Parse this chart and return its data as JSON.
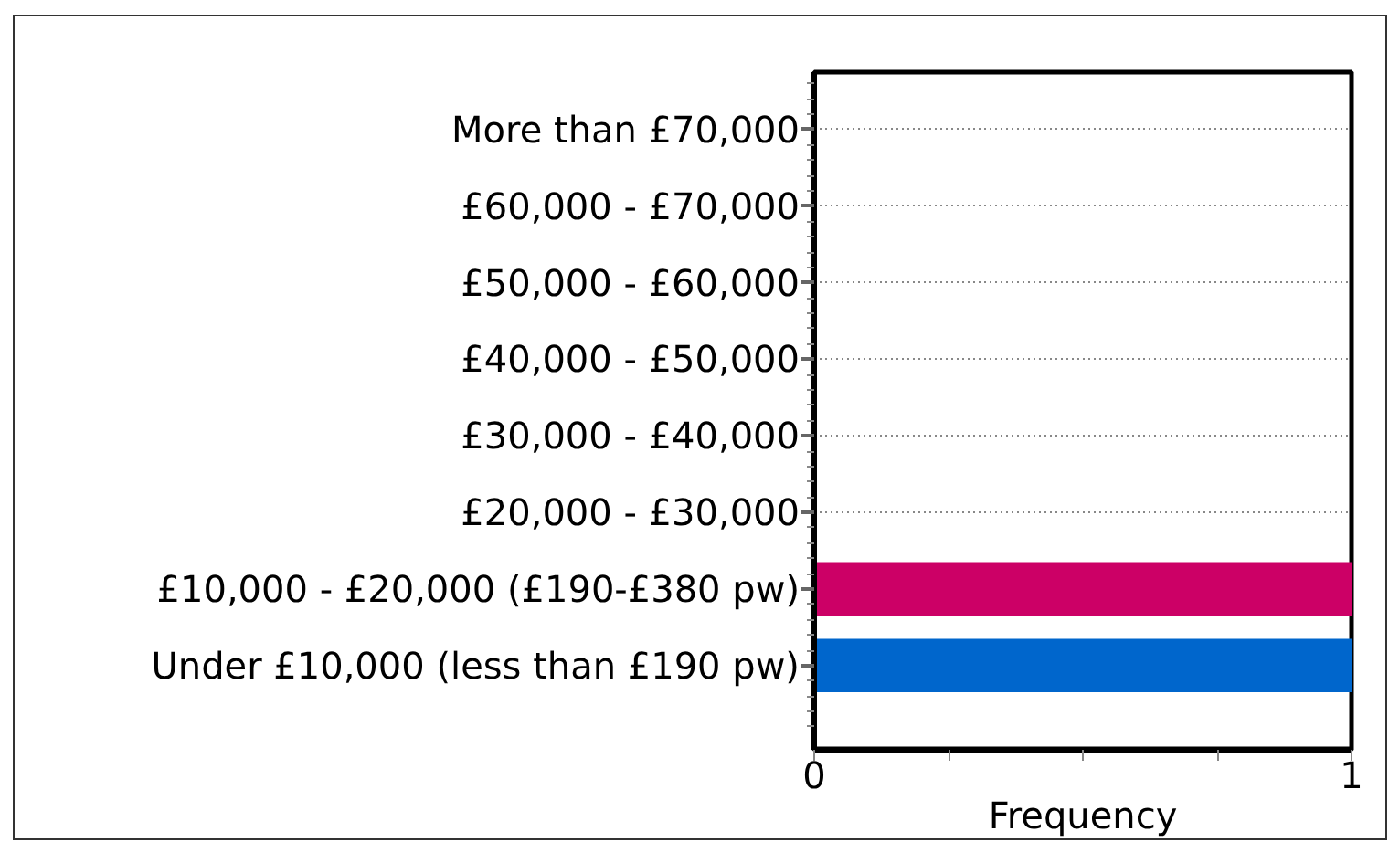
{
  "chart_data": {
    "type": "bar",
    "orientation": "horizontal",
    "categories": [
      "More than £70,000",
      "£60,000 - £70,000",
      "£50,000 - £60,000",
      "£40,000 - £50,000",
      "£30,000 - £40,000",
      "£20,000 - £30,000",
      "£10,000 - £20,000 (£190-£380 pw)",
      "Under £10,000 (less than £190 pw)"
    ],
    "values": [
      0,
      0,
      0,
      0,
      0,
      0,
      1,
      1
    ],
    "colors": [
      null,
      null,
      null,
      null,
      null,
      null,
      "#cc0066",
      "#0066cc"
    ],
    "xlabel": "Frequency",
    "xlim": [
      0,
      1
    ],
    "xticks": [
      0,
      {
        "value": 0.25,
        "label": null
      },
      {
        "value": 0.5,
        "label": null
      },
      {
        "value": 0.75,
        "label": null
      },
      1
    ],
    "grid": "y"
  }
}
